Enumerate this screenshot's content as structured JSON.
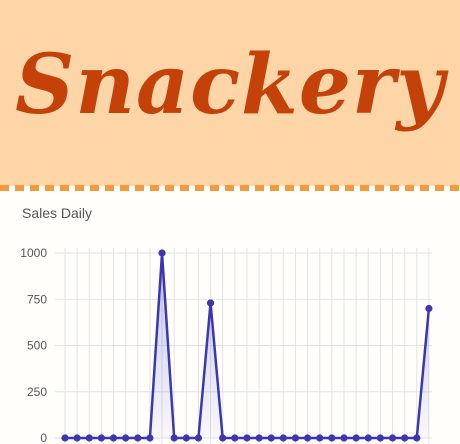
{
  "brand": {
    "logo_text": "Snackery"
  },
  "colors": {
    "header_bg": "#fdd5a7",
    "logo": "#c4420a",
    "divider": "#f59a3c",
    "series": "#3d36b3"
  },
  "chart_data": {
    "type": "line",
    "title": "Sales Daily",
    "xlabel": "",
    "ylabel": "",
    "ylim": [
      0,
      1000
    ],
    "y_ticks": [
      0,
      250,
      500,
      750,
      1000
    ],
    "grid": true,
    "fill": true,
    "series": [
      {
        "values": [
          0,
          0,
          0,
          0,
          0,
          0,
          0,
          0,
          1000,
          0,
          0,
          0,
          730,
          0,
          0,
          0,
          0,
          0,
          0,
          0,
          0,
          0,
          0,
          0,
          0,
          0,
          0,
          0,
          0,
          0,
          700
        ]
      }
    ]
  }
}
